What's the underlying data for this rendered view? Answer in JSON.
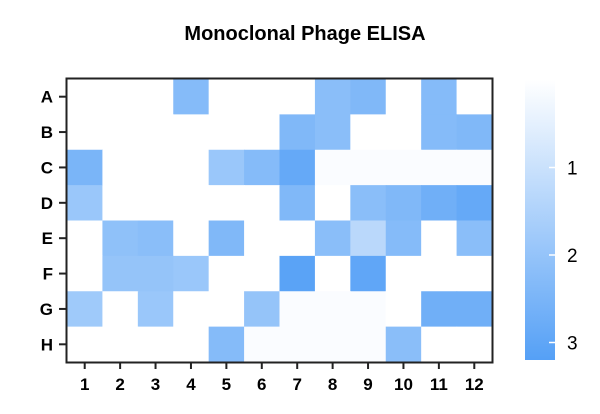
{
  "chart_data": {
    "type": "heatmap",
    "title": "Monoclonal Phage ELISA",
    "xlabel": "",
    "ylabel": "",
    "x_categories": [
      "1",
      "2",
      "3",
      "4",
      "5",
      "6",
      "7",
      "8",
      "9",
      "10",
      "11",
      "12"
    ],
    "y_categories": [
      "A",
      "B",
      "C",
      "D",
      "E",
      "F",
      "G",
      "H"
    ],
    "values": [
      [
        0.0,
        0.0,
        0.0,
        2.3,
        0.0,
        0.0,
        0.0,
        2.2,
        2.4,
        0.0,
        2.3,
        0.0
      ],
      [
        0.0,
        0.0,
        0.0,
        0.0,
        0.0,
        0.0,
        2.4,
        2.2,
        0.0,
        0.0,
        2.3,
        2.4
      ],
      [
        2.5,
        0.0,
        0.0,
        0.0,
        1.9,
        2.3,
        2.9,
        0.1,
        0.1,
        0.1,
        0.1,
        0.1
      ],
      [
        1.9,
        0.0,
        0.0,
        0.0,
        0.0,
        0.0,
        2.4,
        0.0,
        2.2,
        2.4,
        2.7,
        2.9
      ],
      [
        0.0,
        2.1,
        2.2,
        0.0,
        2.4,
        0.0,
        0.0,
        2.2,
        1.3,
        2.3,
        0.0,
        2.2
      ],
      [
        0.0,
        2.0,
        2.0,
        1.9,
        0.0,
        0.0,
        3.1,
        0.0,
        3.0,
        0.0,
        0.0,
        0.0
      ],
      [
        1.8,
        0.0,
        1.9,
        0.0,
        0.0,
        2.0,
        0.1,
        0.1,
        0.1,
        0.0,
        2.7,
        2.7
      ],
      [
        0.0,
        0.0,
        0.0,
        0.0,
        2.3,
        0.1,
        0.1,
        0.1,
        0.1,
        2.2,
        0.0,
        0.0
      ]
    ],
    "colorbar": {
      "range": [
        0,
        3.2
      ],
      "ticks": [
        1,
        2,
        3
      ],
      "low_color": "#ffffff",
      "high_color": "#55a0f6",
      "position": "right"
    },
    "grid": false
  }
}
